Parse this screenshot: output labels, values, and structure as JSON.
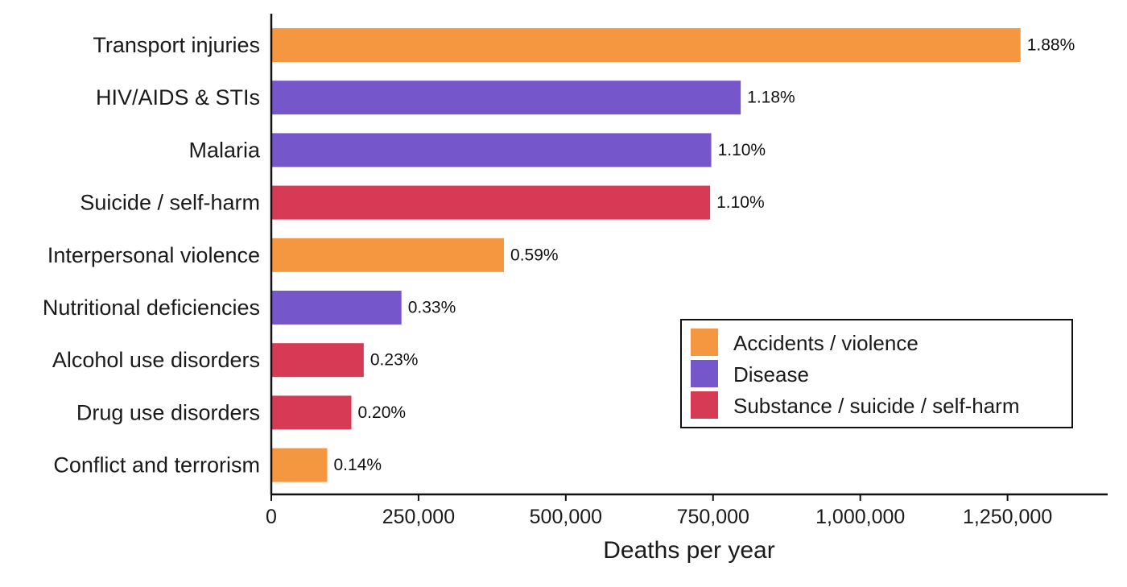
{
  "chart_data": {
    "type": "bar",
    "orientation": "horizontal",
    "title": "",
    "xlabel": "Deaths per year",
    "ylabel": "",
    "xlim": [
      0,
      1420000
    ],
    "xticks": [
      0,
      250000,
      500000,
      750000,
      1000000,
      1250000
    ],
    "xtick_labels": [
      "0",
      "250,000",
      "500,000",
      "750,000",
      "1,000,000",
      "1,250,000"
    ],
    "grid": false,
    "legend_position": "bottom-right",
    "categories": [
      "Transport injuries",
      "HIV/AIDS & STIs",
      "Malaria",
      "Suicide / self-harm",
      "Interpersonal violence",
      "Nutritional deficiencies",
      "Alcohol use disorders",
      "Drug use disorders",
      "Conflict and terrorism"
    ],
    "values": [
      1272000,
      797000,
      747000,
      745000,
      395000,
      221000,
      157000,
      136000,
      95000
    ],
    "data_labels": [
      "1.88%",
      "1.18%",
      "1.10%",
      "1.10%",
      "0.59%",
      "0.33%",
      "0.23%",
      "0.20%",
      "0.14%"
    ],
    "groups": [
      "accidents",
      "disease",
      "disease",
      "substance",
      "accidents",
      "disease",
      "substance",
      "substance",
      "accidents"
    ],
    "legend": [
      {
        "key": "accidents",
        "label": "Accidents / violence",
        "color": "#F59640"
      },
      {
        "key": "disease",
        "label": "Disease",
        "color": "#7557CB"
      },
      {
        "key": "substance",
        "label": "Substance / suicide / self-harm",
        "color": "#D63A55"
      }
    ]
  }
}
